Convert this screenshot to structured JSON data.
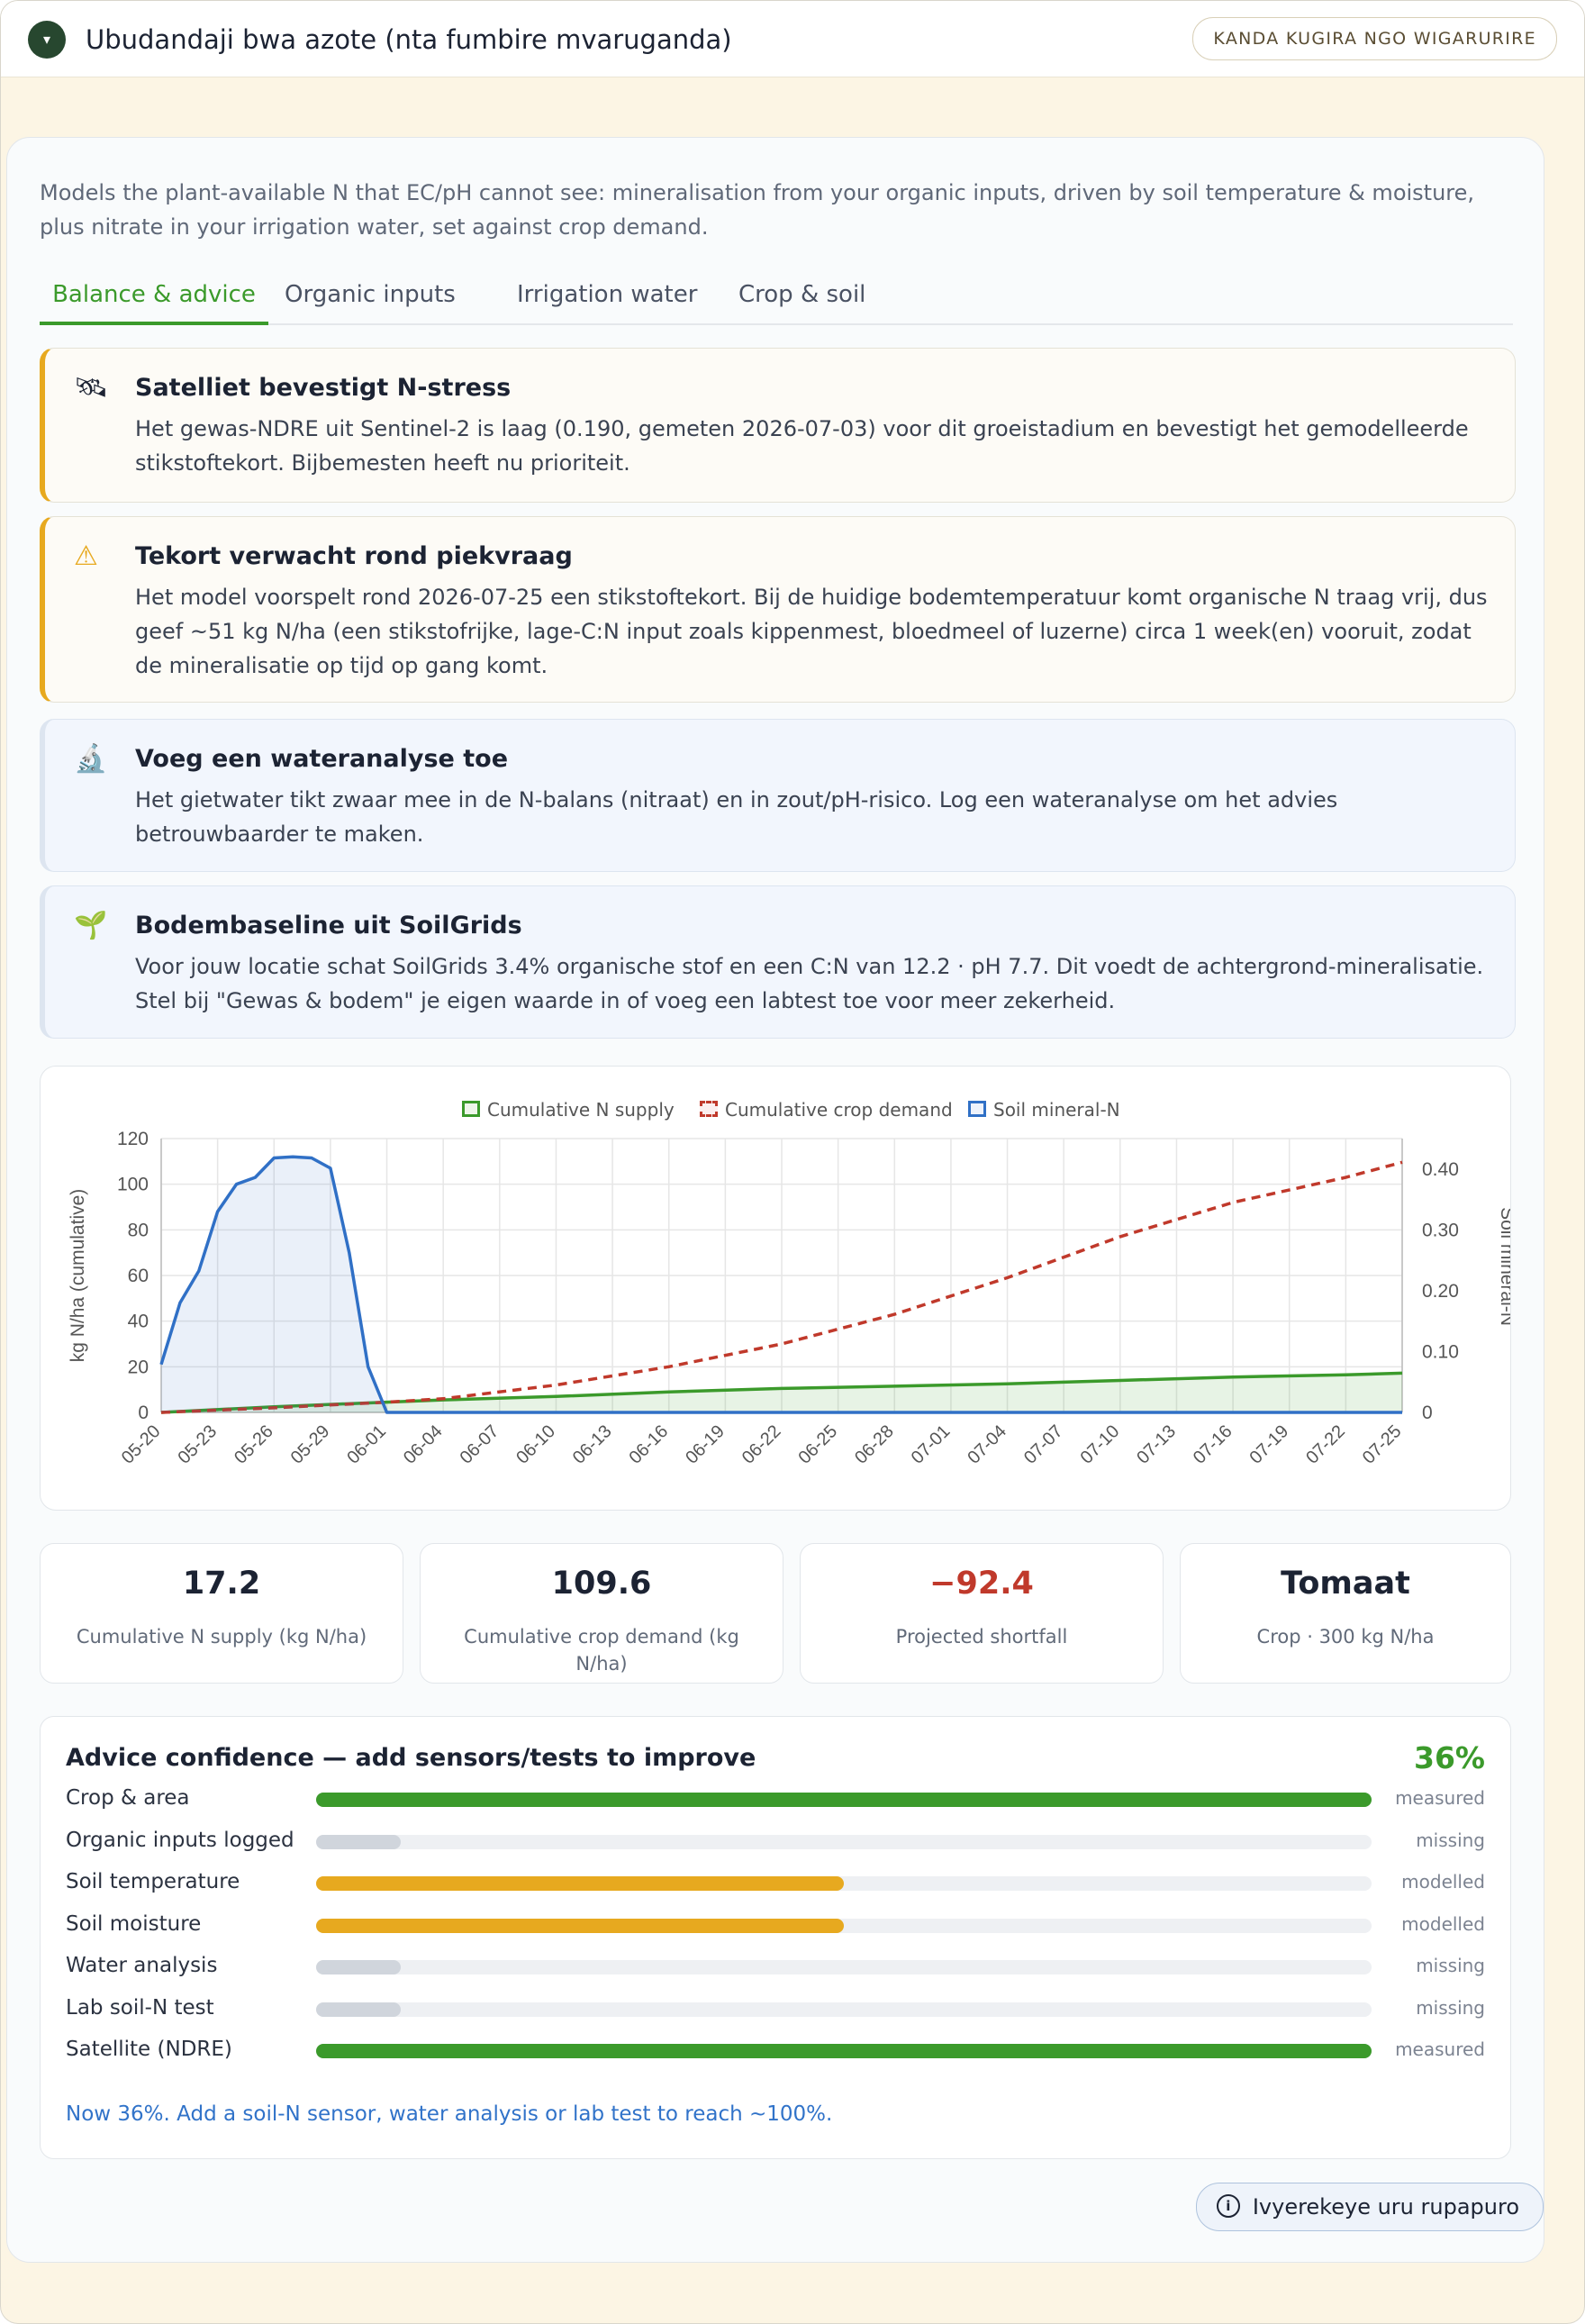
{
  "header": {
    "toggle_icon": "▾",
    "title": "Ubudandaji bwa azote (nta fumbire mvaruganda)",
    "action_label": "KANDA KUGIRA NGO WIGARURIRE"
  },
  "intro": "Models the plant-available N that EC/pH cannot see: mineralisation from your organic inputs, driven by soil temperature & moisture, plus nitrate in your irrigation water, set against crop demand.",
  "tabs": [
    {
      "label": "Balance & advice",
      "active": true
    },
    {
      "label": "Organic inputs",
      "active": false
    },
    {
      "label": "Irrigation water",
      "active": false
    },
    {
      "label": "Crop & soil",
      "active": false
    }
  ],
  "alerts": [
    {
      "type": "warning",
      "icon": "satellite-icon",
      "glyph": "🛰",
      "title": "Satelliet bevestigt N-stress",
      "body": "Het gewas-NDRE uit Sentinel-2 is laag (0.190, gemeten 2026-07-03) voor dit groeistadium en bevestigt het gemodelleerde stikstoftekort. Bijbemesten heeft nu prioriteit."
    },
    {
      "type": "warning",
      "icon": "warning-icon",
      "glyph": "⚠",
      "title": "Tekort verwacht rond piekvraag",
      "body": "Het model voorspelt rond 2026-07-25 een stikstoftekort. Bij de huidige bodemtemperatuur komt organische N traag vrij, dus geef ~51 kg N/ha (een stikstofrijke, lage-C:N input zoals kippenmest, bloedmeel of luzerne) circa 1 week(en) vooruit, zodat de mineralisatie op tijd op gang komt."
    },
    {
      "type": "info",
      "icon": "microscope-icon",
      "glyph": "🔬",
      "title": "Voeg een wateranalyse toe",
      "body": "Het gietwater tikt zwaar mee in de N-balans (nitraat) en in zout/pH-risico. Log een wateranalyse om het advies betrouwbaarder te maken."
    },
    {
      "type": "info",
      "icon": "seedling-icon",
      "glyph": "🌱",
      "title": "Bodembaseline uit SoilGrids",
      "body": "Voor jouw locatie schat SoilGrids 3.4% organische stof en een C:N van 12.2 · pH 7.7. Dit voedt de achtergrond-mineralisatie. Stel bij \"Gewas & bodem\" je eigen waarde in of voeg een labtest toe voor meer zekerheid."
    }
  ],
  "chart_data": {
    "type": "line",
    "legend": [
      "Cumulative N supply",
      "Cumulative crop demand",
      "Soil mineral-N"
    ],
    "legend_position": "top-center",
    "ylabel": "kg N/ha (cumulative)",
    "y2label": "Soil mineral-N",
    "ylim": [
      0,
      120
    ],
    "y2lim": [
      0,
      0.45
    ],
    "yticks": [
      "0",
      "20",
      "40",
      "60",
      "80",
      "100",
      "120"
    ],
    "y2ticks": [
      "0",
      "0.10",
      "0.20",
      "0.30",
      "0.40"
    ],
    "xticks": [
      "05-20",
      "05-23",
      "05-26",
      "05-29",
      "06-01",
      "06-04",
      "06-07",
      "06-10",
      "06-13",
      "06-16",
      "06-19",
      "06-22",
      "06-25",
      "06-28",
      "07-01",
      "07-04",
      "07-07",
      "07-10",
      "07-13",
      "07-16",
      "07-19",
      "07-22",
      "07-25"
    ],
    "grid": true,
    "series": [
      {
        "name": "Cumulative N supply",
        "color": "#3b9a2b",
        "style": "solid",
        "fill": true,
        "axis": "left",
        "x": [
          "05-20",
          "05-26",
          "06-01",
          "06-04",
          "06-10",
          "06-16",
          "06-22",
          "06-28",
          "07-04",
          "07-10",
          "07-16",
          "07-22",
          "07-25"
        ],
        "y": [
          0,
          2.5,
          4.5,
          5.5,
          7,
          9,
          10.5,
          11.5,
          12.5,
          14,
          15.5,
          16.5,
          17.2
        ]
      },
      {
        "name": "Cumulative crop demand",
        "color": "#c0392b",
        "style": "dashed",
        "fill": false,
        "axis": "left",
        "x": [
          "05-20",
          "05-26",
          "06-01",
          "06-04",
          "06-10",
          "06-16",
          "06-22",
          "06-28",
          "07-04",
          "07-10",
          "07-16",
          "07-22",
          "07-25"
        ],
        "y": [
          0,
          2,
          4.5,
          6,
          12,
          20,
          30,
          43,
          59,
          77,
          92,
          103,
          109.6
        ]
      },
      {
        "name": "Soil mineral-N",
        "color": "#3070c6",
        "style": "solid",
        "fill": true,
        "axis": "left",
        "x": [
          "05-20",
          "05-21",
          "05-22",
          "05-23",
          "05-24",
          "05-25",
          "05-26",
          "05-27",
          "05-28",
          "05-29",
          "05-30",
          "05-31",
          "06-01",
          "06-04",
          "07-25"
        ],
        "y": [
          21,
          48,
          62,
          88,
          100,
          103,
          111.5,
          112,
          111.5,
          107,
          70,
          20,
          0,
          0,
          0
        ]
      }
    ]
  },
  "stats": [
    {
      "value": "17.2",
      "label": "Cumulative N supply (kg N/ha)",
      "color": "#1c2333"
    },
    {
      "value": "109.6",
      "label": "Cumulative crop demand (kg N/ha)",
      "color": "#1c2333"
    },
    {
      "value": "−92.4",
      "label": "Projected shortfall",
      "color": "#c0392b"
    },
    {
      "value": "Tomaat",
      "label": "Crop · 300 kg N/ha",
      "color": "#1c2333"
    }
  ],
  "confidence": {
    "title": "Advice confidence — add sensors/tests to improve",
    "percent": "36%",
    "rows": [
      {
        "label": "Crop & area",
        "status": "measured",
        "level": 1.0,
        "color": "#3b9a2b"
      },
      {
        "label": "Organic inputs logged",
        "status": "missing",
        "level": 0.08,
        "color": "#d0d5dc"
      },
      {
        "label": "Soil temperature",
        "status": "modelled",
        "level": 0.5,
        "color": "#e7a91f"
      },
      {
        "label": "Soil moisture",
        "status": "modelled",
        "level": 0.5,
        "color": "#e7a91f"
      },
      {
        "label": "Water analysis",
        "status": "missing",
        "level": 0.08,
        "color": "#d0d5dc"
      },
      {
        "label": "Lab soil-N test",
        "status": "missing",
        "level": 0.08,
        "color": "#d0d5dc"
      },
      {
        "label": "Satellite (NDRE)",
        "status": "measured",
        "level": 1.0,
        "color": "#3b9a2b"
      }
    ],
    "footer": "Now 36%. Add a soil-N sensor, water analysis or lab test to reach ~100%."
  },
  "help_button": {
    "icon": "info-icon",
    "glyph": "i",
    "label": "Ivyerekeye uru rupapuro"
  }
}
